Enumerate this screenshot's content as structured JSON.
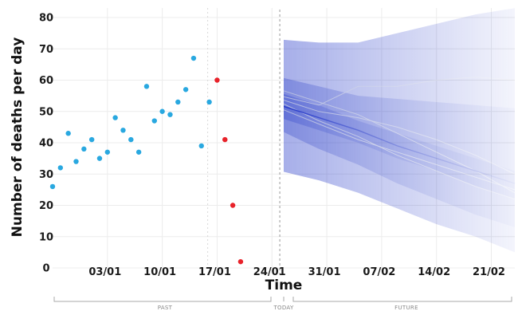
{
  "chart_data": {
    "type": "scatter",
    "title": "",
    "xlabel": "Time",
    "ylabel": "Number of deaths per day",
    "ylim": [
      0,
      80
    ],
    "yticks": [
      0,
      10,
      20,
      30,
      40,
      50,
      60,
      70,
      80
    ],
    "x_range": [
      "2020-12-27",
      "2021-02-24"
    ],
    "x_ticks": [
      {
        "date": "2021-01-03",
        "label": "03/01"
      },
      {
        "date": "2021-01-10",
        "label": "10/01"
      },
      {
        "date": "2021-01-17",
        "label": "17/01"
      },
      {
        "date": "2021-01-24",
        "label": "24/01"
      },
      {
        "date": "2021-01-31",
        "label": "31/01"
      },
      {
        "date": "2021-02-07",
        "label": "07/02"
      },
      {
        "date": "2021-02-14",
        "label": "14/02"
      },
      {
        "date": "2021-02-21",
        "label": "21/02"
      }
    ],
    "grid": true,
    "today": "2021-01-25",
    "sections": {
      "past": "PAST",
      "today": "TODAY",
      "future": "FUTURE"
    },
    "observed": [
      {
        "x": "2020-12-27",
        "y": 26
      },
      {
        "x": "2020-12-28",
        "y": 32
      },
      {
        "x": "2020-12-29",
        "y": 43
      },
      {
        "x": "2020-12-30",
        "y": 34
      },
      {
        "x": "2020-12-31",
        "y": 38
      },
      {
        "x": "2021-01-01",
        "y": 41
      },
      {
        "x": "2021-01-02",
        "y": 35
      },
      {
        "x": "2021-01-03",
        "y": 37
      },
      {
        "x": "2021-01-04",
        "y": 48
      },
      {
        "x": "2021-01-05",
        "y": 44
      },
      {
        "x": "2021-01-06",
        "y": 41
      },
      {
        "x": "2021-01-07",
        "y": 37
      },
      {
        "x": "2021-01-08",
        "y": 58
      },
      {
        "x": "2021-01-09",
        "y": 47
      },
      {
        "x": "2021-01-10",
        "y": 50
      },
      {
        "x": "2021-01-11",
        "y": 49
      },
      {
        "x": "2021-01-12",
        "y": 53
      },
      {
        "x": "2021-01-13",
        "y": 57
      },
      {
        "x": "2021-01-14",
        "y": 67
      },
      {
        "x": "2021-01-15",
        "y": 39
      },
      {
        "x": "2021-01-16",
        "y": 53
      }
    ],
    "observed_color": "#29a8e0",
    "recent": [
      {
        "x": "2021-01-17",
        "y": 60
      },
      {
        "x": "2021-01-18",
        "y": 41
      },
      {
        "x": "2021-01-19",
        "y": 20
      },
      {
        "x": "2021-01-20",
        "y": 2
      }
    ],
    "recent_color": "#e8222a",
    "forecast": {
      "color": "#2438c8",
      "x": [
        "2021-01-25",
        "2021-01-30",
        "2021-02-04",
        "2021-02-09",
        "2021-02-14",
        "2021-02-19",
        "2021-02-24"
      ],
      "outer_upper": [
        73,
        72,
        72,
        75,
        78,
        81,
        83
      ],
      "middle_upper": [
        61,
        58,
        55,
        54,
        53,
        52,
        51
      ],
      "inner_upper": [
        56,
        52,
        47,
        43,
        39,
        35,
        31
      ],
      "median": [
        52,
        48,
        44,
        39,
        35,
        31,
        27
      ],
      "inner_lower": [
        48,
        44,
        40,
        35,
        31,
        26,
        22
      ],
      "middle_lower": [
        44,
        38,
        33,
        27,
        22,
        17,
        13
      ],
      "outer_lower": [
        31,
        28,
        24,
        19,
        14,
        10,
        5
      ],
      "sample_paths": [
        [
          54,
          50,
          48,
          45,
          41,
          36,
          30
        ],
        [
          55,
          52,
          58,
          58,
          60,
          61,
          60
        ],
        [
          53,
          47,
          42,
          36,
          31,
          26,
          22
        ],
        [
          51,
          46,
          41,
          37,
          33,
          29,
          25
        ],
        [
          57,
          53,
          49,
          43,
          37,
          31,
          24
        ]
      ]
    }
  }
}
